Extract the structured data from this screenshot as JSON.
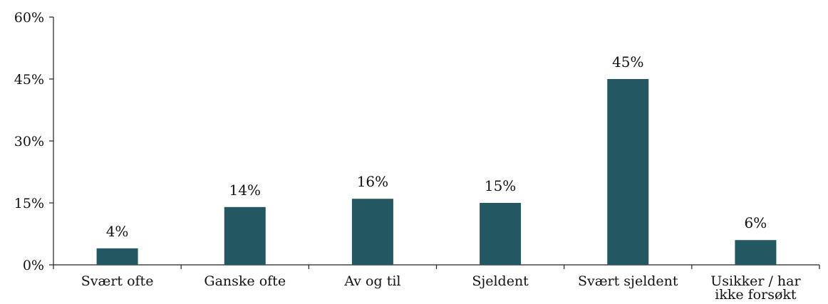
{
  "chart_data": {
    "type": "bar",
    "categories": [
      [
        "Svært ofte"
      ],
      [
        "Ganske ofte"
      ],
      [
        "Av og til"
      ],
      [
        "Sjeldent"
      ],
      [
        "Svært sjeldent"
      ],
      [
        "Usikker / har",
        "ikke forsøkt"
      ]
    ],
    "values": [
      4,
      14,
      16,
      15,
      45,
      6
    ],
    "data_labels": [
      "4%",
      "14%",
      "16%",
      "15%",
      "45%",
      "6%"
    ],
    "y_ticks": [
      0,
      15,
      30,
      45,
      60
    ],
    "y_tick_labels": [
      "0%",
      "15%",
      "30%",
      "45%",
      "60%"
    ],
    "ylim": [
      0,
      60
    ],
    "grid": false,
    "legend": "none",
    "colors": {
      "bar": "#235863",
      "axis": "#222222",
      "text": "#111111"
    }
  }
}
